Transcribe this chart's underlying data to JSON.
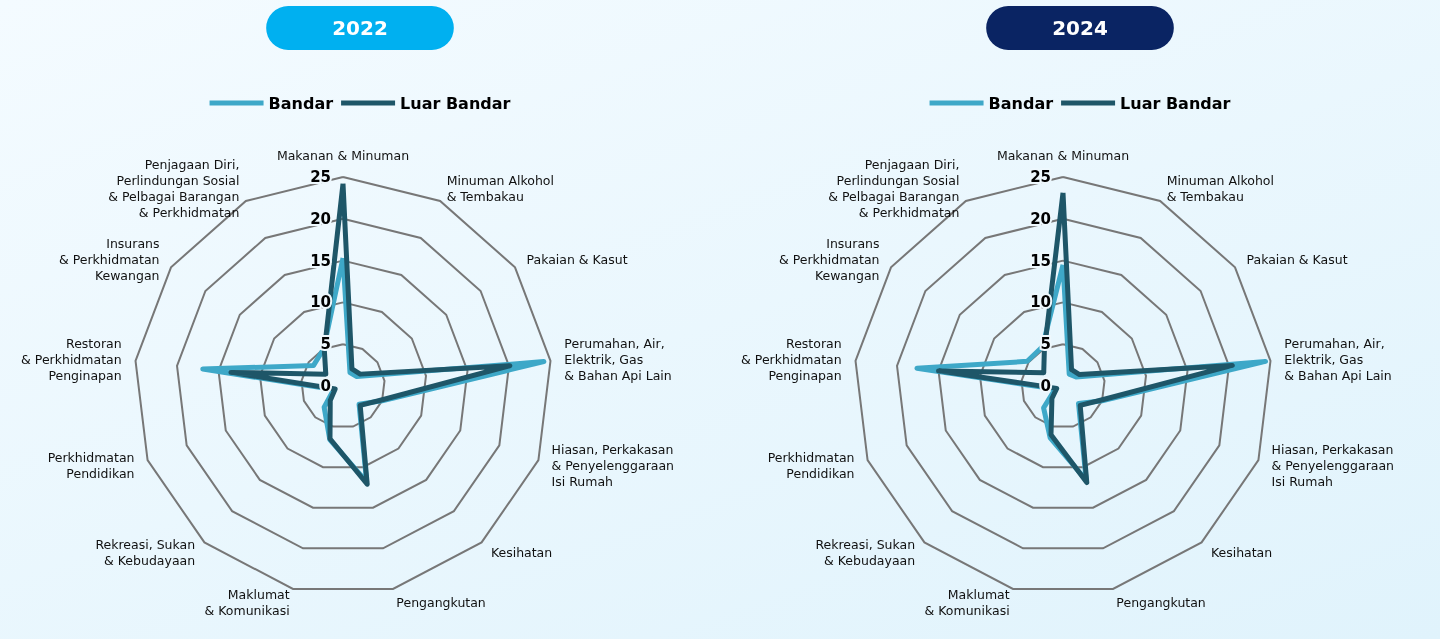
{
  "chart_data": [
    {
      "type": "radar",
      "title": "2022",
      "legend": "top",
      "marker": "none",
      "grid": true,
      "ylim": [
        0,
        25
      ],
      "yticks": [
        0,
        5,
        10,
        15,
        20,
        25
      ],
      "categories": [
        "Makanan & Minuman",
        "Minuman Alkohol & Tembakau",
        "Pakaian & Kasut",
        "Perumahan, Air, Elektrik, Gas & Bahan Api Lain",
        "Hiasan, Perkakasan & Penyelenggaraan Isi Rumah",
        "Kesihatan",
        "Pengangkutan",
        "Maklumat & Komunikasi",
        "Rekreasi, Sukan & Kebudayaan",
        "Perkhidmatan Pendidikan",
        "Restoran & Perkhidmatan Penginapan",
        "Insurans & Perkhidmatan Kewangan",
        "Penjagaan Diri, Perlindungan Sosial & Pelbagai Barangan & Perkhidmatan"
      ],
      "series": [
        {
          "name": "Bandar",
          "color": "#3ea8c8",
          "values": [
            15.3,
            1.8,
            2.0,
            24.2,
            5.0,
            2.9,
            11.8,
            6.6,
            3.4,
            1.2,
            16.9,
            4.3,
            5.0
          ]
        },
        {
          "name": "Luar Bandar",
          "color": "#1e5668",
          "values": [
            24.2,
            2.3,
            2.5,
            20.1,
            4.8,
            3.1,
            12.1,
            6.5,
            2.3,
            1.0,
            13.5,
            2.5,
            4.8
          ]
        }
      ]
    },
    {
      "type": "radar",
      "title": "2024",
      "legend": "top",
      "marker": "none",
      "grid": true,
      "ylim": [
        0,
        25
      ],
      "yticks": [
        0,
        5,
        10,
        15,
        20,
        25
      ],
      "categories": [
        "Makanan & Minuman",
        "Minuman Alkohol & Tembakau",
        "Pakaian & Kasut",
        "Perumahan, Air, Elektrik, Gas & Bahan Api Lain",
        "Hiasan, Perkakasan & Penyelenggaraan Isi Rumah",
        "Kesihatan",
        "Pengangkutan",
        "Maklumat & Komunikasi",
        "Rekreasi, Sukan & Kebudayaan",
        "Perkhidmatan Pendidikan",
        "Restoran & Perkhidmatan Penginapan",
        "Insurans & Perkhidmatan Kewangan",
        "Penjagaan Diri, Perlindungan Sosial & Pelbagai Barangan & Perkhidmatan"
      ],
      "series": [
        {
          "name": "Bandar",
          "color": "#3ea8c8",
          "values": [
            14.5,
            1.6,
            1.9,
            24.4,
            5.0,
            2.8,
            11.6,
            6.4,
            3.5,
            1.0,
            17.6,
            5.2,
            5.3
          ]
        },
        {
          "name": "Luar Bandar",
          "color": "#1e5668",
          "values": [
            23.1,
            2.2,
            2.4,
            20.4,
            4.8,
            3.1,
            11.9,
            6.0,
            2.0,
            0.8,
            15.0,
            2.8,
            4.8
          ]
        }
      ]
    }
  ]
}
